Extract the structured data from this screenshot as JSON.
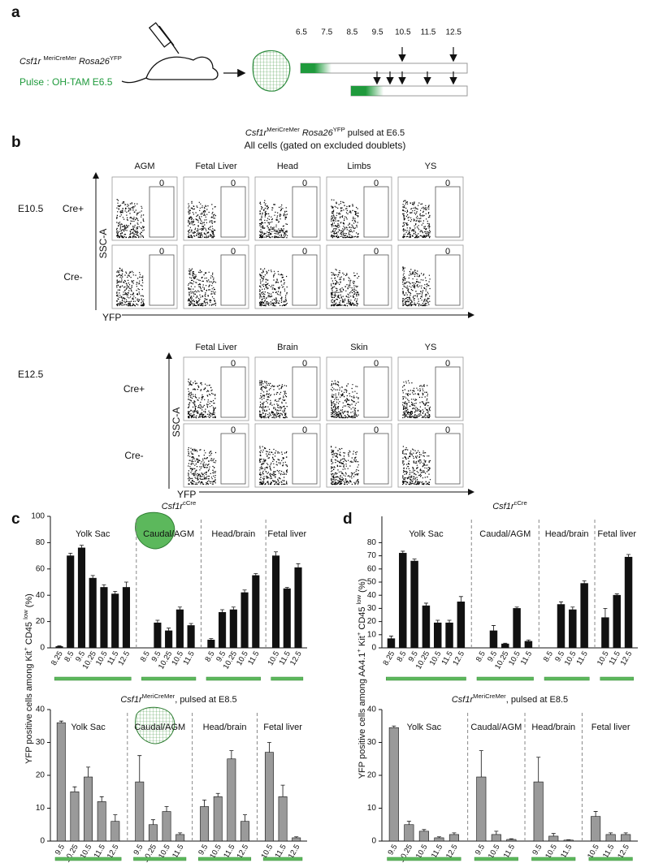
{
  "panel_a": {
    "label": "a",
    "strain_parts": [
      "Csf1r ",
      "MeriCreMer",
      " Rosa26",
      "YFP"
    ],
    "pulse": "Pulse : OH-TAM E6.5",
    "timeline": [
      "6.5",
      "7.5",
      "8.5",
      "9.5",
      "10.5",
      "11.5",
      "12.5"
    ]
  },
  "panel_b": {
    "label": "b",
    "title_parts": [
      "Csf1r",
      "MeriCreMer",
      " Rosa26",
      "YFP",
      " pulsed at E6.5"
    ],
    "subtitle": "All cells (gated on excluded doublets)",
    "y_axis": "SSC-A",
    "x_axis": "YFP",
    "stages": [
      {
        "stage": "E10.5",
        "tissues": [
          "AGM",
          "Fetal Liver",
          "Head",
          "Limbs",
          "YS"
        ],
        "rows": [
          {
            "label": "Cre+",
            "gates": [
              0,
              0,
              0,
              0,
              0
            ]
          },
          {
            "label": "Cre-",
            "gates": [
              0,
              0,
              0,
              0,
              0
            ]
          }
        ]
      },
      {
        "stage": "E12.5",
        "tissues": [
          "Fetal Liver",
          "Brain",
          "Skin",
          "YS"
        ],
        "rows": [
          {
            "label": "Cre+",
            "gates": [
              0,
              0,
              0,
              0
            ]
          },
          {
            "label": "Cre-",
            "gates": [
              0,
              0,
              0,
              0
            ]
          }
        ]
      }
    ]
  },
  "panel_c": {
    "label": "c",
    "y_label_parts": [
      "YFP positive cells among Kit",
      "+",
      " CD45 ",
      "low",
      " (%)"
    ]
  },
  "panel_d": {
    "label": "d",
    "y_label_parts": [
      "YFP positive cells  among AA4.1",
      "+",
      " Kit",
      "+",
      " CD45 ",
      "low",
      " (%)"
    ]
  },
  "chart_data": [
    {
      "type": "bar",
      "title_parts": [
        "Csf1r",
        "cCre"
      ],
      "color": "#111111",
      "ylim": [
        0,
        100
      ],
      "yticks": [
        0,
        20,
        40,
        60,
        80,
        100
      ],
      "groups": [
        {
          "name": "Yolk Sac",
          "categories": [
            "8.25",
            "8.5",
            "9.5",
            "10.25",
            "10.5",
            "11.5",
            "12.5"
          ],
          "values": [
            1,
            70,
            76,
            53,
            46,
            41,
            46
          ],
          "errors": [
            0.5,
            2,
            2,
            2,
            2,
            2,
            4
          ]
        },
        {
          "name": "Caudal/AGM",
          "categories": [
            "8.5",
            "9.5",
            "10.25",
            "10.5",
            "11.5"
          ],
          "values": [
            0,
            19,
            13,
            29,
            17
          ],
          "errors": [
            0,
            2,
            2,
            2,
            1.5
          ]
        },
        {
          "name": "Head/brain",
          "categories": [
            "8.5",
            "9.5",
            "10.25",
            "10.5",
            "11.5"
          ],
          "values": [
            6,
            27,
            29,
            42,
            55
          ],
          "errors": [
            1,
            2,
            2,
            2,
            1.5
          ]
        },
        {
          "name": "Fetal liver",
          "categories": [
            "10.5",
            "11.5",
            "12.5"
          ],
          "values": [
            70,
            45,
            61
          ],
          "errors": [
            3,
            1,
            3
          ]
        }
      ]
    },
    {
      "type": "bar",
      "title_parts": [
        "Csf1r",
        "MeriCreMer",
        ", pulsed at E8.5"
      ],
      "color": "#9a9a9a",
      "ylim": [
        0,
        40
      ],
      "yticks": [
        0,
        10,
        20,
        30,
        40
      ],
      "groups": [
        {
          "name": "Yolk Sac",
          "categories": [
            "9.5",
            "10.25",
            "10.5",
            "11.5",
            "12.5"
          ],
          "values": [
            36,
            15,
            19.5,
            12,
            6
          ],
          "errors": [
            0.5,
            1.5,
            3,
            1.5,
            2
          ]
        },
        {
          "name": "Caudal/AGM",
          "categories": [
            "9.5",
            "10.25",
            "10.5",
            "11.5"
          ],
          "values": [
            18,
            5,
            9,
            2
          ],
          "errors": [
            8,
            1.5,
            1.5,
            0.5
          ]
        },
        {
          "name": "Head/brain",
          "categories": [
            "9.5",
            "10.5",
            "11.5",
            "12.5"
          ],
          "values": [
            10.5,
            13.5,
            25,
            6
          ],
          "errors": [
            2,
            1,
            2.5,
            2
          ]
        },
        {
          "name": "Fetal liver",
          "categories": [
            "10.5",
            "11.5",
            "12.5"
          ],
          "values": [
            27,
            13.5,
            1
          ],
          "errors": [
            3,
            3.5,
            0.3
          ]
        }
      ]
    },
    {
      "type": "bar",
      "title_parts": [
        "Csf1r",
        "cCre"
      ],
      "color": "#111111",
      "ylim": [
        0,
        100
      ],
      "yticks": [
        0,
        10,
        20,
        30,
        40,
        50,
        60,
        70,
        80
      ],
      "groups": [
        {
          "name": "Yolk Sac",
          "categories": [
            "8.25",
            "8.5",
            "9.5",
            "10.25",
            "10.5",
            "11.5",
            "12.5"
          ],
          "values": [
            7,
            72,
            66,
            32,
            19,
            19,
            35
          ],
          "errors": [
            2,
            1.5,
            1.5,
            2,
            2,
            2,
            4
          ]
        },
        {
          "name": "Caudal/AGM",
          "categories": [
            "8.5",
            "9.5",
            "10.25",
            "10.5",
            "11.5"
          ],
          "values": [
            0,
            13,
            3,
            30,
            5
          ],
          "errors": [
            0,
            4,
            0.5,
            1,
            1
          ]
        },
        {
          "name": "Head/brain",
          "categories": [
            "8.5",
            "9.5",
            "10.5",
            "11.5"
          ],
          "values": [
            0,
            33,
            29,
            49
          ],
          "errors": [
            0,
            2,
            2,
            2
          ]
        },
        {
          "name": "Fetal liver",
          "categories": [
            "10.5",
            "11.5",
            "12.5"
          ],
          "values": [
            23,
            40,
            69
          ],
          "errors": [
            7,
            1,
            2
          ]
        }
      ]
    },
    {
      "type": "bar",
      "title_parts": [
        "Csf1r",
        "MeriCreMer",
        ", pulsed at E8.5"
      ],
      "color": "#9a9a9a",
      "ylim": [
        0,
        40
      ],
      "yticks": [
        0,
        10,
        20,
        30,
        40
      ],
      "groups": [
        {
          "name": "Yolk Sac",
          "categories": [
            "9.5",
            "10.25",
            "10.5",
            "11.5",
            "12.5"
          ],
          "values": [
            34.5,
            5,
            3,
            1,
            2
          ],
          "errors": [
            0.5,
            1,
            0.5,
            0.3,
            0.5
          ]
        },
        {
          "name": "Caudal/AGM",
          "categories": [
            "9.5",
            "10.5",
            "11.5"
          ],
          "values": [
            19.5,
            2,
            0.5
          ],
          "errors": [
            8,
            1,
            0.2
          ]
        },
        {
          "name": "Head/brain",
          "categories": [
            "9.5",
            "10.5",
            "11.5"
          ],
          "values": [
            18,
            1.5,
            0.3
          ],
          "errors": [
            7.5,
            0.8,
            0.1
          ]
        },
        {
          "name": "Fetal liver",
          "categories": [
            "10.5",
            "11.5",
            "12.5"
          ],
          "values": [
            7.5,
            2,
            2
          ],
          "errors": [
            1.5,
            0.5,
            0.5
          ]
        }
      ]
    }
  ]
}
